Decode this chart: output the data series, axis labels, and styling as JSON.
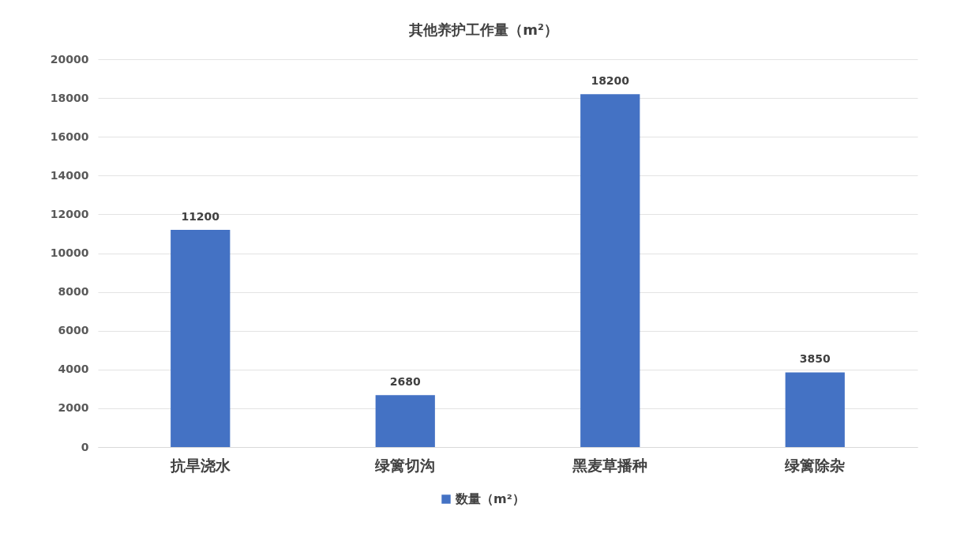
{
  "chart_data": {
    "type": "bar",
    "title": "其他养护工作量（m²）",
    "categories": [
      "抗旱浇水",
      "绿篱切沟",
      "黑麦草播种",
      "绿篱除杂"
    ],
    "series": [
      {
        "name": "数量（m²）",
        "color": "#4472c4",
        "values": [
          11200,
          2680,
          18200,
          3850
        ]
      }
    ],
    "ylim": [
      0,
      20000
    ],
    "yticks": [
      0,
      2000,
      4000,
      6000,
      8000,
      10000,
      12000,
      14000,
      16000,
      18000,
      20000
    ],
    "grid": "y",
    "legend": "bottom",
    "data_labels": true
  }
}
